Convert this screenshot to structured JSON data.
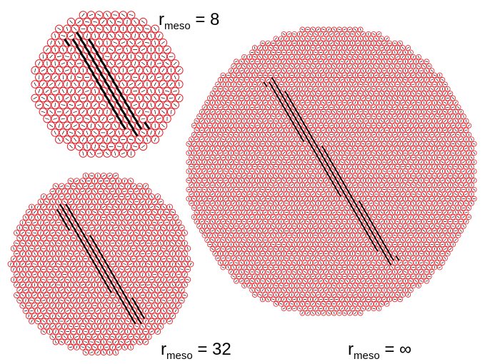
{
  "panels": [
    {
      "id": "r8",
      "label": {
        "base": "r",
        "sub": "meso",
        "rest": "= 8"
      }
    },
    {
      "id": "r32",
      "label": {
        "base": "r",
        "sub": "meso",
        "rest": "= 32"
      }
    },
    {
      "id": "rinf",
      "label": {
        "base": "r",
        "sub": "meso",
        "rest": "= ∞"
      }
    }
  ],
  "colors": {
    "cell_outline": "#e8202a",
    "director": "#000000",
    "background": "#ffffff"
  },
  "mark_shapes": {
    "cell": "circle",
    "director": "short line segment inside each circle"
  }
}
